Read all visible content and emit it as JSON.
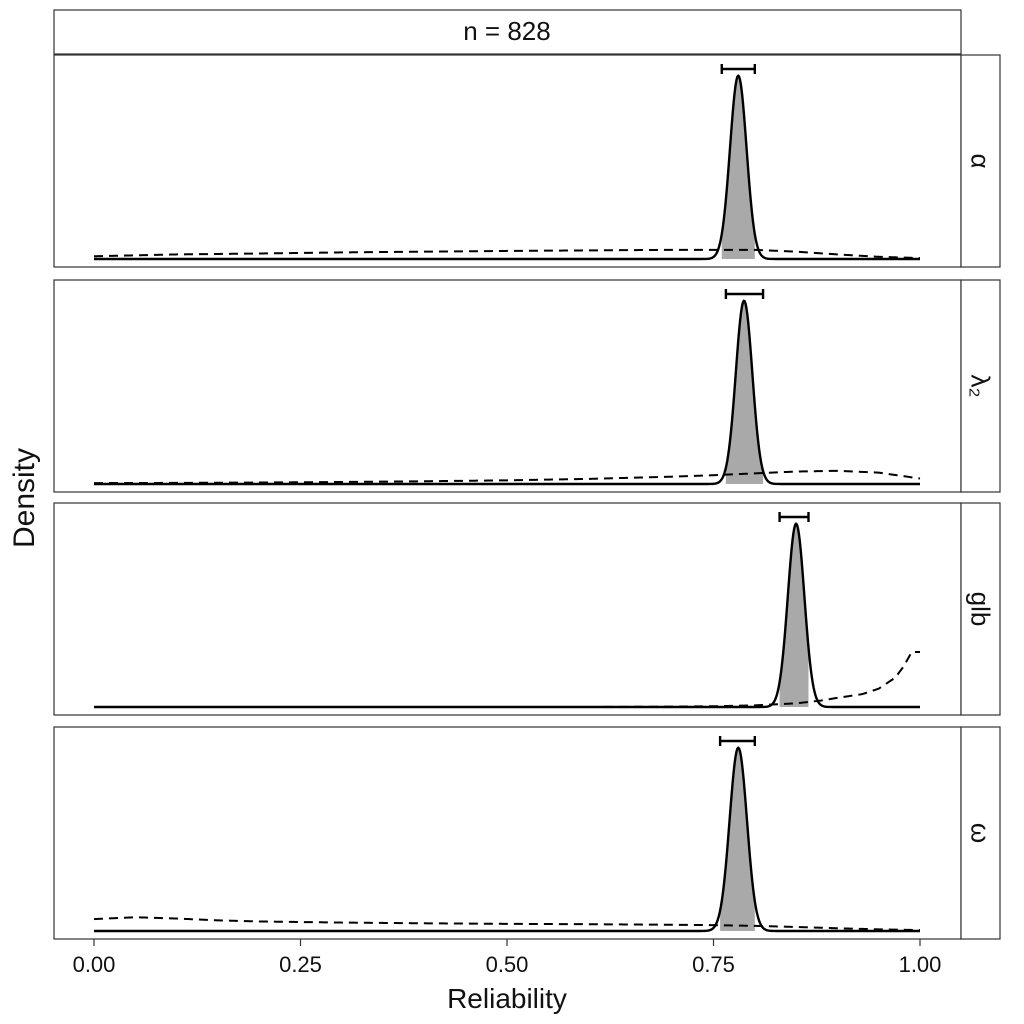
{
  "chart_data": {
    "type": "line",
    "title": "n = 828",
    "xlabel": "Reliability",
    "ylabel": "Density",
    "xlim": [
      0,
      1
    ],
    "x_ticks": [
      {
        "value": 0.0,
        "label": "0.00"
      },
      {
        "value": 0.25,
        "label": "0.25"
      },
      {
        "value": 0.5,
        "label": "0.50"
      },
      {
        "value": 0.75,
        "label": "0.75"
      },
      {
        "value": 1.0,
        "label": "1.00"
      }
    ],
    "y_ticks_shown": false,
    "grid": false,
    "legend": "none",
    "colors": {
      "posterior_line": "#000000",
      "interval_fill": "#a9a9a9",
      "prior_line": "#000000"
    },
    "panels": [
      {
        "label": "α",
        "posterior": {
          "mode": 0.78,
          "sd": 0.01
        },
        "interval": [
          0.76,
          0.8
        ],
        "ymax": 1.08,
        "prior": {
          "x": [
            0,
            0.1,
            0.2,
            0.3,
            0.4,
            0.5,
            0.6,
            0.7,
            0.75,
            0.8,
            0.85,
            0.9,
            0.95,
            1.0
          ],
          "y": [
            0.015,
            0.025,
            0.03,
            0.036,
            0.04,
            0.044,
            0.047,
            0.05,
            0.05,
            0.05,
            0.04,
            0.025,
            0.012,
            0.005
          ]
        }
      },
      {
        "label": "λ₂",
        "posterior": {
          "mode": 0.787,
          "sd": 0.01
        },
        "interval": [
          0.765,
          0.81
        ],
        "ymax": 1.08,
        "prior": {
          "x": [
            0,
            0.1,
            0.2,
            0.3,
            0.4,
            0.5,
            0.6,
            0.7,
            0.75,
            0.8,
            0.85,
            0.9,
            0.95,
            1.0
          ],
          "y": [
            0.005,
            0.006,
            0.008,
            0.011,
            0.015,
            0.02,
            0.028,
            0.04,
            0.048,
            0.058,
            0.068,
            0.072,
            0.062,
            0.03
          ]
        }
      },
      {
        "label": "glb",
        "posterior": {
          "mode": 0.85,
          "sd": 0.01
        },
        "interval": [
          0.83,
          0.865
        ],
        "ymax": 1.08,
        "prior": {
          "x": [
            0,
            0.1,
            0.2,
            0.3,
            0.4,
            0.5,
            0.6,
            0.7,
            0.75,
            0.8,
            0.85,
            0.88,
            0.9,
            0.93,
            0.95,
            0.97,
            0.98,
            0.99,
            1.0
          ],
          "y": [
            0,
            0,
            0,
            0,
            0,
            0,
            0,
            0.002,
            0.004,
            0.009,
            0.02,
            0.035,
            0.05,
            0.07,
            0.1,
            0.16,
            0.22,
            0.3,
            0.3
          ]
        }
      },
      {
        "label": "ω",
        "posterior": {
          "mode": 0.78,
          "sd": 0.0105
        },
        "interval": [
          0.758,
          0.8
        ],
        "ymax": 1.08,
        "prior": {
          "x": [
            0,
            0.05,
            0.1,
            0.15,
            0.2,
            0.3,
            0.4,
            0.5,
            0.6,
            0.7,
            0.75,
            0.8,
            0.85,
            0.9,
            0.95,
            1.0
          ],
          "y": [
            0.065,
            0.075,
            0.068,
            0.058,
            0.052,
            0.046,
            0.042,
            0.039,
            0.037,
            0.034,
            0.032,
            0.028,
            0.022,
            0.015,
            0.009,
            0.005
          ]
        }
      }
    ]
  }
}
